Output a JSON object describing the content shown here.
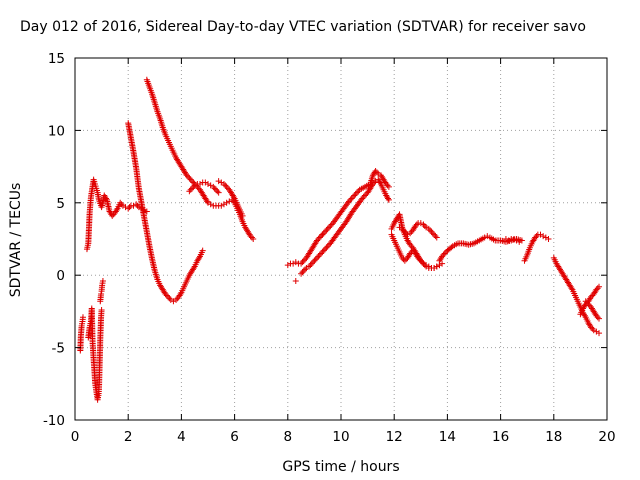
{
  "chart_data": {
    "type": "scatter",
    "title": "Day 012 of 2016, Sidereal Day-to-day VTEC variation (SDTVAR) for receiver savo",
    "xlabel": "GPS time / hours",
    "ylabel": "SDTVAR / TECUs",
    "xlim": [
      0,
      20
    ],
    "ylim": [
      -10,
      15
    ],
    "xticks": [
      0,
      2,
      4,
      6,
      8,
      10,
      12,
      14,
      16,
      18,
      20
    ],
    "yticks": [
      -10,
      -5,
      0,
      5,
      10,
      15
    ],
    "grid": true,
    "marker": "+",
    "color": "#e00000",
    "series": [
      {
        "name": "segment-1",
        "x": [
          0.2,
          0.22,
          0.25,
          0.28,
          0.3
        ],
        "y": [
          -5.2,
          -4.2,
          -3.5,
          -3.2,
          -2.9
        ]
      },
      {
        "name": "segment-2",
        "x": [
          0.5,
          0.55,
          0.6,
          0.63,
          0.66,
          0.7,
          0.73,
          0.76,
          0.8,
          0.85,
          0.88,
          0.9,
          0.92,
          0.95,
          0.98,
          1.0
        ],
        "y": [
          -4.3,
          -3.6,
          -3.2,
          -2.3,
          -4.6,
          -5.8,
          -6.6,
          -7.5,
          -8.0,
          -8.6,
          -8.3,
          -7.9,
          -6.6,
          -4.4,
          -2.9,
          -2.4
        ]
      },
      {
        "name": "segment-3",
        "x": [
          0.95,
          0.98,
          1.0,
          1.02,
          1.05
        ],
        "y": [
          -1.8,
          -1.3,
          -1.1,
          -0.7,
          -0.4
        ]
      },
      {
        "name": "segment-4",
        "x": [
          0.45,
          0.5,
          0.55,
          0.6,
          0.65,
          0.7,
          0.75,
          0.8,
          0.85,
          0.9,
          1.0,
          1.1,
          1.2,
          1.3,
          1.4,
          1.5,
          1.6,
          1.7,
          1.8,
          1.9,
          2.0,
          2.1,
          2.2,
          2.3,
          2.4,
          2.5,
          2.6,
          2.7
        ],
        "y": [
          1.8,
          2.2,
          4.3,
          5.4,
          6.0,
          6.6,
          6.3,
          6.0,
          5.7,
          5.2,
          4.7,
          5.5,
          5.2,
          4.4,
          4.1,
          4.3,
          4.6,
          5.0,
          4.8,
          4.7,
          4.6,
          4.8,
          4.8,
          4.9,
          4.7,
          4.6,
          4.5,
          4.4
        ]
      },
      {
        "name": "segment-5",
        "x": [
          2.0,
          2.1,
          2.2,
          2.3,
          2.4,
          2.5,
          2.6,
          2.7,
          2.8,
          2.9,
          3.0,
          3.1,
          3.2,
          3.3,
          3.4,
          3.5,
          3.6,
          3.7,
          3.8,
          3.9,
          4.0,
          4.1,
          4.2,
          4.3,
          4.4,
          4.5,
          4.6,
          4.7,
          4.8
        ],
        "y": [
          10.5,
          9.5,
          8.5,
          7.4,
          6.0,
          5.0,
          4.0,
          3.0,
          2.0,
          1.1,
          0.3,
          -0.3,
          -0.7,
          -1.0,
          -1.3,
          -1.5,
          -1.7,
          -1.8,
          -1.7,
          -1.5,
          -1.2,
          -0.8,
          -0.4,
          0.0,
          0.3,
          0.6,
          1.0,
          1.3,
          1.7
        ]
      },
      {
        "name": "segment-6",
        "x": [
          2.7,
          2.8,
          2.9,
          3.0,
          3.1,
          3.2,
          3.3,
          3.4,
          3.5,
          3.6,
          3.7,
          3.8,
          3.9,
          4.0,
          4.1,
          4.2,
          4.3,
          4.4,
          4.5,
          4.6,
          4.7,
          4.8,
          4.9,
          5.0,
          5.1,
          5.2,
          5.3,
          5.4,
          5.5,
          5.6,
          5.7,
          5.8,
          5.9,
          6.0,
          6.1,
          6.2,
          6.3,
          6.4,
          6.5,
          6.6,
          6.7
        ],
        "y": [
          13.5,
          13.0,
          12.5,
          11.9,
          11.3,
          10.8,
          10.2,
          9.7,
          9.3,
          8.9,
          8.5,
          8.1,
          7.8,
          7.5,
          7.2,
          6.9,
          6.7,
          6.5,
          6.3,
          6.1,
          5.9,
          5.6,
          5.3,
          5.0,
          4.9,
          4.8,
          4.8,
          4.8,
          4.8,
          4.9,
          5.0,
          5.1,
          5.2,
          5.0,
          4.6,
          4.2,
          3.7,
          3.3,
          3.0,
          2.7,
          2.5
        ]
      },
      {
        "name": "segment-7",
        "x": [
          4.3,
          4.4,
          4.5,
          4.6,
          4.7,
          4.8,
          4.9,
          5.0,
          5.1,
          5.2,
          5.3,
          5.4
        ],
        "y": [
          5.8,
          6.0,
          6.2,
          6.3,
          6.3,
          6.4,
          6.4,
          6.3,
          6.2,
          6.1,
          5.9,
          5.7
        ]
      },
      {
        "name": "segment-8",
        "x": [
          5.4,
          5.5,
          5.6,
          5.7,
          5.8,
          5.9,
          6.0,
          6.1,
          6.2,
          6.3
        ],
        "y": [
          6.5,
          6.4,
          6.3,
          6.1,
          5.9,
          5.6,
          5.3,
          4.9,
          4.5,
          4.1
        ]
      },
      {
        "name": "segment-9",
        "x": [
          8.0,
          8.1,
          8.2,
          8.3,
          8.4,
          8.5,
          8.6,
          8.7,
          8.8,
          8.9,
          9.0,
          9.1,
          9.2,
          9.3
        ],
        "y": [
          0.7,
          0.8,
          0.8,
          0.9,
          0.8,
          0.8,
          1.0,
          1.2,
          1.5,
          1.8,
          2.1,
          2.4,
          2.6,
          2.8
        ]
      },
      {
        "name": "segment-10",
        "x": [
          8.3
        ],
        "y": [
          -0.4
        ]
      },
      {
        "name": "segment-11",
        "x": [
          8.5,
          8.6,
          8.7,
          8.8,
          8.9,
          9.0,
          9.2,
          9.4,
          9.6,
          9.8,
          10.0,
          10.2,
          10.4,
          10.6,
          10.8,
          11.0,
          11.1,
          11.2,
          11.3,
          11.4,
          11.5,
          11.6,
          11.7,
          11.8
        ],
        "y": [
          0.1,
          0.3,
          0.5,
          0.6,
          0.8,
          1.0,
          1.4,
          1.8,
          2.2,
          2.7,
          3.2,
          3.7,
          4.3,
          4.8,
          5.3,
          5.7,
          6.0,
          6.3,
          6.5,
          6.6,
          6.3,
          5.9,
          5.5,
          5.2
        ]
      },
      {
        "name": "segment-12",
        "x": [
          9.3,
          9.5,
          9.7,
          9.9,
          10.1,
          10.3,
          10.5,
          10.7,
          10.9,
          11.1,
          11.2,
          11.3,
          11.4,
          11.5,
          11.6,
          11.7,
          11.8
        ],
        "y": [
          2.8,
          3.2,
          3.6,
          4.1,
          4.6,
          5.1,
          5.5,
          5.9,
          6.1,
          6.3,
          6.9,
          7.2,
          7.0,
          6.9,
          6.6,
          6.3,
          6.1
        ]
      },
      {
        "name": "segment-13",
        "x": [
          11.9,
          12.0,
          12.1,
          12.2,
          12.3,
          12.4,
          12.5,
          12.6,
          12.7,
          12.8,
          12.9,
          13.0,
          13.1,
          13.2,
          13.3,
          13.4,
          13.5,
          13.6,
          13.7
        ],
        "y": [
          3.2,
          3.6,
          3.9,
          4.2,
          3.3,
          2.8,
          2.4,
          2.1,
          1.9,
          1.6,
          1.3,
          1.0,
          0.8,
          0.6,
          0.5,
          0.5,
          0.5,
          0.6,
          0.7
        ]
      },
      {
        "name": "segment-14",
        "x": [
          11.9,
          12.0,
          12.1,
          12.2,
          12.3,
          12.4,
          12.5,
          12.6,
          12.7,
          12.8,
          12.9,
          13.0,
          13.1,
          13.2,
          13.3,
          13.4,
          13.5,
          13.6,
          13.7,
          13.8
        ],
        "y": [
          2.8,
          2.4,
          2.0,
          1.6,
          1.2,
          1.0,
          1.2,
          1.5,
          1.7,
          1.5,
          1.2,
          1.0,
          0.8,
          0.7,
          0.6,
          0.5,
          0.5,
          0.6,
          0.7,
          0.8
        ]
      },
      {
        "name": "segment-15",
        "x": [
          12.2,
          12.3,
          12.4,
          12.5,
          12.6,
          12.7,
          12.8,
          12.9,
          13.0,
          13.1,
          13.2,
          13.3,
          13.4,
          13.5,
          13.6
        ],
        "y": [
          3.3,
          3.2,
          3.0,
          2.8,
          2.9,
          3.1,
          3.4,
          3.6,
          3.6,
          3.5,
          3.3,
          3.2,
          3.0,
          2.8,
          2.6
        ]
      },
      {
        "name": "segment-16",
        "x": [
          13.7,
          13.8,
          14.0,
          14.2,
          14.4,
          14.6,
          14.8,
          15.0,
          15.2,
          15.4,
          15.5,
          15.6,
          15.8,
          16.0,
          16.2,
          16.4,
          16.6,
          16.8
        ],
        "y": [
          1.0,
          1.3,
          1.7,
          2.0,
          2.2,
          2.2,
          2.1,
          2.2,
          2.4,
          2.6,
          2.7,
          2.6,
          2.4,
          2.4,
          2.3,
          2.4,
          2.5,
          2.4
        ]
      },
      {
        "name": "segment-17",
        "x": [
          16.2,
          16.3,
          16.4,
          16.5,
          16.6,
          16.7
        ],
        "y": [
          2.5,
          2.4,
          2.5,
          2.5,
          2.4,
          2.3
        ]
      },
      {
        "name": "segment-18",
        "x": [
          16.9,
          17.0,
          17.1,
          17.2,
          17.3,
          17.4,
          17.5,
          17.6,
          17.7,
          17.8
        ],
        "y": [
          1.0,
          1.4,
          1.9,
          2.3,
          2.6,
          2.8,
          2.8,
          2.7,
          2.6,
          2.5
        ]
      },
      {
        "name": "segment-19",
        "x": [
          18.0,
          18.1,
          18.2,
          18.3,
          18.4,
          18.5,
          18.6,
          18.7,
          18.8,
          18.9,
          19.0,
          19.1,
          19.2,
          19.3,
          19.4,
          19.5,
          19.6,
          19.7
        ],
        "y": [
          1.2,
          0.8,
          0.5,
          0.2,
          -0.1,
          -0.4,
          -0.7,
          -1.0,
          -1.4,
          -1.8,
          -2.2,
          -2.6,
          -2.9,
          -3.3,
          -3.6,
          -3.8,
          -3.9,
          -4.0
        ]
      },
      {
        "name": "segment-20",
        "x": [
          19.0,
          19.1,
          19.2,
          19.3,
          19.4,
          19.5,
          19.6,
          19.7
        ],
        "y": [
          -2.7,
          -2.3,
          -2.0,
          -1.8,
          -1.5,
          -1.3,
          -1.0,
          -0.8
        ]
      },
      {
        "name": "segment-21",
        "x": [
          19.2,
          19.3,
          19.4,
          19.5,
          19.6,
          19.7
        ],
        "y": [
          -1.8,
          -2.0,
          -2.2,
          -2.5,
          -2.8,
          -3.0
        ]
      }
    ]
  }
}
